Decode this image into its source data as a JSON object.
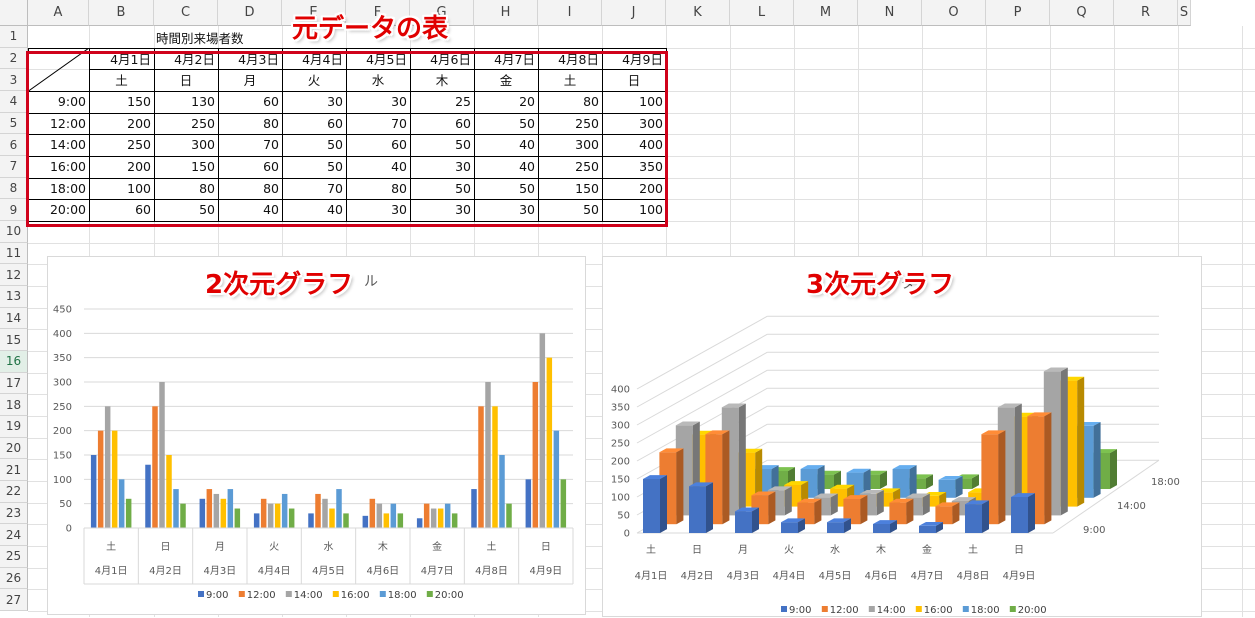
{
  "sheet": {
    "columns": [
      "A",
      "B",
      "C",
      "D",
      "E",
      "F",
      "G",
      "H",
      "I",
      "J",
      "K",
      "L",
      "M",
      "N",
      "O",
      "P",
      "Q",
      "R",
      "S"
    ],
    "rows": [
      "1",
      "2",
      "3",
      "4",
      "5",
      "6",
      "7",
      "8",
      "9",
      "10",
      "11",
      "12",
      "13",
      "14",
      "15",
      "16",
      "17",
      "18",
      "19",
      "20",
      "21",
      "22",
      "23",
      "24",
      "25",
      "26",
      "27"
    ],
    "selected_row": "16",
    "table_title": "時間別来場者数",
    "dates": [
      "4月1日",
      "4月2日",
      "4月3日",
      "4月4日",
      "4月5日",
      "4月6日",
      "4月7日",
      "4月8日",
      "4月9日"
    ],
    "weekdays": [
      "土",
      "日",
      "月",
      "火",
      "水",
      "木",
      "金",
      "土",
      "日"
    ],
    "times": [
      "9:00",
      "12:00",
      "14:00",
      "16:00",
      "18:00",
      "20:00"
    ],
    "values": [
      [
        150,
        130,
        60,
        30,
        30,
        25,
        20,
        80,
        100
      ],
      [
        200,
        250,
        80,
        60,
        70,
        60,
        50,
        250,
        300
      ],
      [
        250,
        300,
        70,
        50,
        60,
        50,
        40,
        300,
        400
      ],
      [
        200,
        150,
        60,
        50,
        40,
        30,
        40,
        250,
        350
      ],
      [
        100,
        80,
        80,
        70,
        80,
        50,
        50,
        150,
        200
      ],
      [
        60,
        50,
        40,
        40,
        30,
        30,
        30,
        50,
        100
      ]
    ]
  },
  "callouts": {
    "source_table": "元データの表",
    "chart2d": "2次元グラフ",
    "chart3d": "3次元グラフ",
    "chart2d_hidden_title_tail": "ル",
    "chart3d_hidden_title_tail": "タ"
  },
  "colors": {
    "series": [
      "#4472c4",
      "#ed7d31",
      "#a5a5a5",
      "#ffc000",
      "#5b9bd5",
      "#70ad47"
    ],
    "callout": "#e00000",
    "frame": "#d0021b"
  },
  "chart_data": [
    {
      "type": "bar",
      "title": "",
      "categories": [
        "土 4月1日",
        "日 4月2日",
        "月 4月3日",
        "火 4月4日",
        "水 4月5日",
        "木 4月6日",
        "金 4月7日",
        "土 4月8日",
        "日 4月9日"
      ],
      "series": [
        {
          "name": "9:00",
          "values": [
            150,
            130,
            60,
            30,
            30,
            25,
            20,
            80,
            100
          ]
        },
        {
          "name": "12:00",
          "values": [
            200,
            250,
            80,
            60,
            70,
            60,
            50,
            250,
            300
          ]
        },
        {
          "name": "14:00",
          "values": [
            250,
            300,
            70,
            50,
            60,
            50,
            40,
            300,
            400
          ]
        },
        {
          "name": "16:00",
          "values": [
            200,
            150,
            60,
            50,
            40,
            30,
            40,
            250,
            350
          ]
        },
        {
          "name": "18:00",
          "values": [
            100,
            80,
            80,
            70,
            80,
            50,
            50,
            150,
            200
          ]
        },
        {
          "name": "20:00",
          "values": [
            60,
            50,
            40,
            40,
            30,
            30,
            30,
            50,
            100
          ]
        }
      ],
      "ylim": [
        0,
        450
      ],
      "yticks": [
        "0",
        "50",
        "100",
        "150",
        "200",
        "250",
        "300",
        "350",
        "400",
        "450"
      ],
      "grid": true,
      "legend": "bottom"
    },
    {
      "type": "bar",
      "title": "",
      "categories": [
        "土 4月1日",
        "日 4月2日",
        "月 4月3日",
        "火 4月4日",
        "水 4月5日",
        "木 4月6日",
        "金 4月7日",
        "土 4月8日",
        "日 4月9日"
      ],
      "series": [
        {
          "name": "9:00",
          "values": [
            150,
            130,
            60,
            30,
            30,
            25,
            20,
            80,
            100
          ]
        },
        {
          "name": "12:00",
          "values": [
            200,
            250,
            80,
            60,
            70,
            60,
            50,
            250,
            300
          ]
        },
        {
          "name": "14:00",
          "values": [
            250,
            300,
            70,
            50,
            60,
            50,
            40,
            300,
            400
          ]
        },
        {
          "name": "16:00",
          "values": [
            200,
            150,
            60,
            50,
            40,
            30,
            40,
            250,
            350
          ]
        },
        {
          "name": "18:00",
          "values": [
            100,
            80,
            80,
            70,
            80,
            50,
            50,
            150,
            200
          ]
        },
        {
          "name": "20:00",
          "values": [
            60,
            50,
            40,
            40,
            30,
            30,
            30,
            50,
            100
          ]
        }
      ],
      "ylim": [
        0,
        400
      ],
      "yticks": [
        "0",
        "50",
        "100",
        "150",
        "200",
        "250",
        "300",
        "350",
        "400"
      ],
      "depth_labels": [
        "9:00",
        "14:00",
        "18:00"
      ],
      "grid": true,
      "legend": "bottom",
      "style": "3d"
    }
  ]
}
